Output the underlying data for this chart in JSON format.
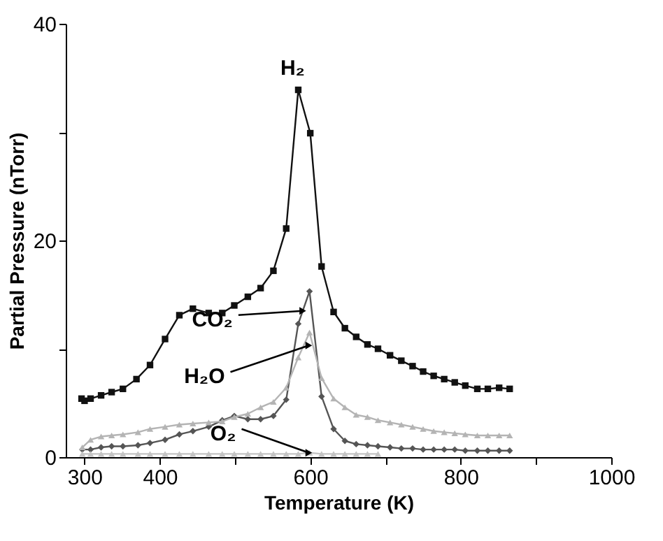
{
  "chart_data": {
    "type": "line",
    "xlabel": "Temperature (K)",
    "ylabel": "Partial Pressure (nTorr)",
    "xlim": [
      275,
      1000
    ],
    "xticks": [
      300,
      400,
      {
        "value": 500,
        "label": null
      },
      600,
      {
        "value": 700,
        "label": null
      },
      800,
      {
        "value": 900,
        "label": null
      },
      1000
    ],
    "ylim": [
      0,
      40
    ],
    "yticks": [
      0,
      {
        "value": 10,
        "label": null
      },
      20,
      {
        "value": 30,
        "label": null
      },
      40
    ],
    "grid": false,
    "line_style": "solid",
    "series": [
      {
        "color": "#111111",
        "marker": "square",
        "x": [
          296,
          300,
          308,
          322,
          336,
          351,
          369,
          387,
          407,
          426,
          444,
          465,
          483,
          499,
          517,
          534,
          551,
          568,
          584,
          600,
          615,
          631,
          646,
          661,
          676,
          690,
          706,
          721,
          736,
          750,
          764,
          778,
          792,
          806,
          822,
          836,
          851,
          865
        ],
        "values": [
          5.4,
          5.2,
          5.4,
          5.7,
          6.0,
          6.3,
          7.2,
          8.5,
          10.9,
          13.1,
          13.7,
          13.3,
          13.3,
          14.0,
          14.8,
          15.6,
          17.2,
          21.1,
          33.9,
          29.9,
          17.6,
          13.4,
          11.9,
          11.1,
          10.4,
          10.0,
          9.4,
          8.9,
          8.4,
          7.9,
          7.5,
          7.2,
          6.9,
          6.6,
          6.3,
          6.3,
          6.4,
          6.3
        ]
      },
      {
        "color": "#555555",
        "marker": "diamond",
        "x": [
          297,
          308,
          322,
          336,
          351,
          371,
          387,
          407,
          426,
          444,
          465,
          483,
          499,
          517,
          534,
          551,
          568,
          584,
          599,
          615,
          631,
          646,
          661,
          676,
          690,
          706,
          721,
          736,
          750,
          764,
          778,
          792,
          806,
          822,
          836,
          851,
          865
        ],
        "values": [
          0.7,
          0.7,
          0.9,
          1.0,
          1.0,
          1.1,
          1.3,
          1.6,
          2.1,
          2.4,
          2.8,
          3.4,
          3.8,
          3.5,
          3.5,
          3.8,
          5.3,
          12.3,
          15.3,
          5.6,
          2.6,
          1.5,
          1.2,
          1.1,
          1.0,
          0.9,
          0.8,
          0.8,
          0.7,
          0.7,
          0.7,
          0.7,
          0.6,
          0.6,
          0.6,
          0.6,
          0.6
        ]
      },
      {
        "color": "#b4b4b4",
        "marker": "triangle",
        "x": [
          297,
          308,
          322,
          336,
          351,
          371,
          387,
          407,
          426,
          444,
          465,
          483,
          499,
          517,
          534,
          551,
          568,
          584,
          599,
          615,
          631,
          646,
          661,
          676,
          690,
          706,
          721,
          736,
          750,
          764,
          778,
          792,
          806,
          822,
          836,
          851,
          865
        ],
        "values": [
          0.9,
          1.6,
          1.9,
          2.0,
          2.1,
          2.3,
          2.6,
          2.8,
          3.0,
          3.1,
          3.2,
          3.3,
          3.7,
          4.0,
          4.6,
          5.1,
          6.4,
          9.2,
          11.5,
          7.3,
          5.4,
          4.6,
          3.9,
          3.7,
          3.4,
          3.2,
          3.0,
          2.8,
          2.6,
          2.4,
          2.3,
          2.2,
          2.1,
          2.0,
          2.0,
          2.0,
          2.0
        ]
      },
      {
        "color": "#c4c4c4",
        "marker": "triangle",
        "x": [
          297,
          308,
          322,
          336,
          351,
          371,
          387,
          407,
          426,
          444,
          465,
          483,
          499,
          517,
          534,
          551,
          568,
          584,
          599,
          615,
          631,
          646,
          661,
          676,
          690
        ],
        "values": [
          0.3,
          0.3,
          0.3,
          0.3,
          0.3,
          0.3,
          0.3,
          0.3,
          0.3,
          0.3,
          0.3,
          0.3,
          0.3,
          0.3,
          0.3,
          0.3,
          0.3,
          0.3,
          0.4,
          0.3,
          0.3,
          0.3,
          0.3,
          0.3,
          0.3
        ]
      }
    ],
    "annotations": [
      {
        "text": "H₂",
        "x": 584,
        "y": 33.9
      },
      {
        "text": "CO₂",
        "x": 590,
        "y": 13.5
      },
      {
        "text": "H₂O",
        "x": 598,
        "y": 10.3
      },
      {
        "text": "O₂",
        "x": 598,
        "y": 0.4
      }
    ]
  }
}
